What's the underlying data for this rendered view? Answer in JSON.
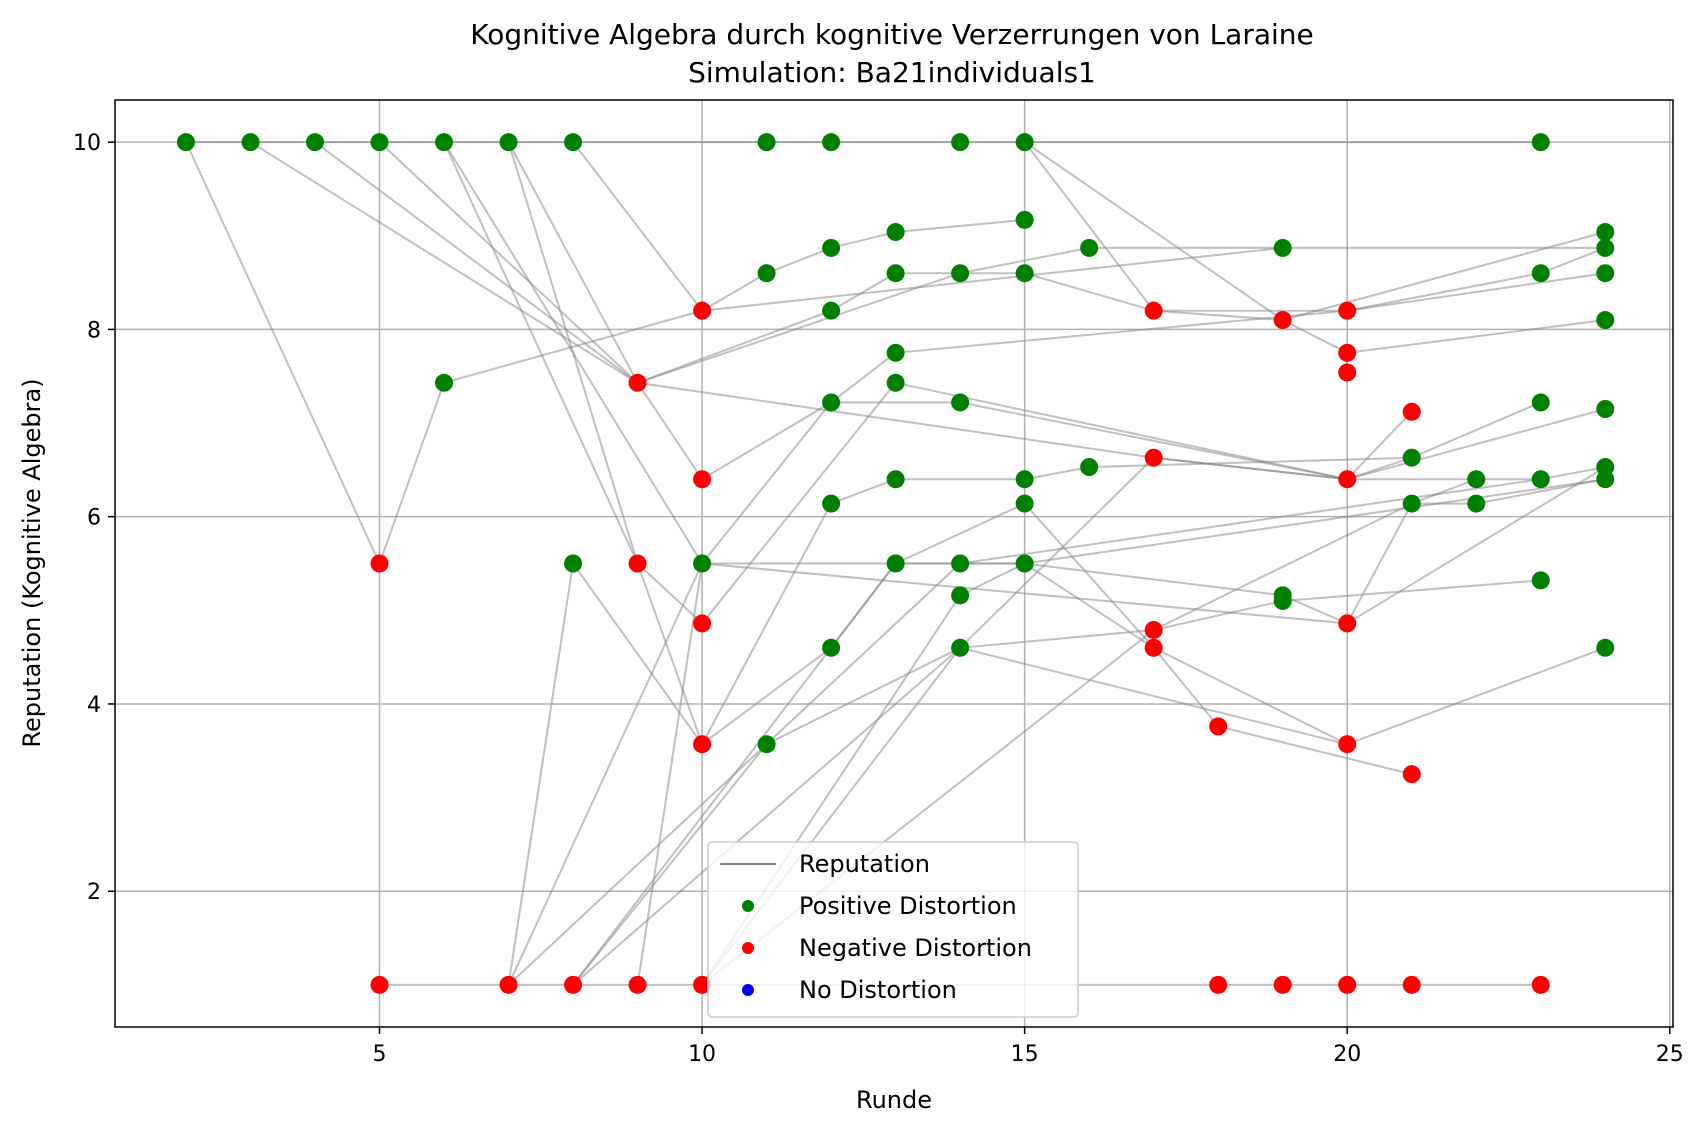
{
  "chart_data": {
    "type": "scatter",
    "title": "Kognitive Algebra durch kognitive Verzerrungen von Laraine",
    "subtitle": "Simulation: Ba21individuals1",
    "xlabel": "Runde",
    "ylabel": "Reputation (Kognitive Algebra)",
    "xlim": [
      0.9,
      25.05
    ],
    "ylim": [
      0.55,
      10.45
    ],
    "xticks": [
      5,
      10,
      15,
      20,
      25
    ],
    "yticks": [
      2,
      4,
      6,
      8,
      10
    ],
    "grid": true,
    "legend_position": "bottom-center",
    "legend": [
      {
        "label": "Reputation",
        "kind": "line",
        "color": "#808080"
      },
      {
        "label": "Positive Distortion",
        "kind": "point",
        "color": "#008000"
      },
      {
        "label": "Negative Distortion",
        "kind": "point",
        "color": "#ff0000"
      },
      {
        "label": "No Distortion",
        "kind": "point",
        "color": "#0000ff"
      }
    ],
    "colors": {
      "positive": "#008000",
      "negative": "#ff0000",
      "none": "#0000ff",
      "line": "#808080"
    },
    "reputation_lines": [
      [
        [
          2,
          10
        ],
        [
          23,
          10
        ]
      ],
      [
        [
          5,
          1
        ],
        [
          23,
          1
        ]
      ],
      [
        [
          2,
          10
        ],
        [
          5,
          5.5
        ],
        [
          6,
          7.43
        ],
        [
          10,
          8.2
        ],
        [
          11,
          8.6
        ],
        [
          12,
          8.87
        ],
        [
          13,
          9.04
        ],
        [
          15,
          9.17
        ]
      ],
      [
        [
          4,
          10
        ],
        [
          9,
          7.43
        ],
        [
          12,
          8.2
        ],
        [
          13,
          8.6
        ],
        [
          14,
          8.6
        ],
        [
          15,
          8.6
        ],
        [
          17,
          8.2
        ],
        [
          19,
          8.1
        ],
        [
          24,
          9.04
        ]
      ],
      [
        [
          3,
          10
        ],
        [
          9,
          7.43
        ],
        [
          14,
          8.6
        ],
        [
          16,
          8.87
        ],
        [
          19,
          8.87
        ],
        [
          24,
          8.87
        ]
      ],
      [
        [
          5,
          10
        ],
        [
          9,
          7.43
        ],
        [
          17,
          6.63
        ],
        [
          20,
          6.4
        ],
        [
          21,
          6.63
        ],
        [
          23,
          7.22
        ]
      ],
      [
        [
          6,
          10
        ],
        [
          9,
          5.5
        ],
        [
          10,
          3.57
        ],
        [
          12,
          4.6
        ],
        [
          13,
          5.5
        ],
        [
          14,
          5.5
        ],
        [
          15,
          5.5
        ],
        [
          20,
          6.0
        ],
        [
          24,
          6.4
        ]
      ],
      [
        [
          6,
          10
        ],
        [
          10,
          5.5
        ],
        [
          20,
          4.86
        ],
        [
          21,
          6.14
        ],
        [
          22,
          6.4
        ]
      ],
      [
        [
          7,
          10
        ],
        [
          9,
          7.43
        ],
        [
          10,
          6.4
        ],
        [
          12,
          7.22
        ],
        [
          13,
          7.75
        ],
        [
          20,
          8.2
        ],
        [
          23,
          8.6
        ],
        [
          24,
          8.87
        ]
      ],
      [
        [
          7,
          10
        ],
        [
          9,
          5.5
        ],
        [
          10,
          4.86
        ],
        [
          13,
          7.43
        ],
        [
          20,
          6.4
        ],
        [
          21,
          7.12
        ]
      ],
      [
        [
          8,
          10
        ],
        [
          10,
          8.2
        ],
        [
          19,
          8.87
        ]
      ],
      [
        [
          15,
          10
        ],
        [
          17,
          8.2
        ],
        [
          20,
          8.2
        ],
        [
          24,
          8.6
        ]
      ],
      [
        [
          15,
          10
        ],
        [
          19,
          8.1
        ],
        [
          20,
          7.75
        ],
        [
          24,
          8.1
        ]
      ],
      [
        [
          7,
          1
        ],
        [
          8,
          5.5
        ],
        [
          10,
          3.57
        ],
        [
          12,
          6.14
        ],
        [
          13,
          6.4
        ],
        [
          15,
          6.4
        ],
        [
          16,
          6.53
        ],
        [
          21,
          6.63
        ]
      ],
      [
        [
          7,
          1
        ],
        [
          10,
          5.5
        ],
        [
          12,
          7.22
        ],
        [
          14,
          7.22
        ],
        [
          20,
          6.4
        ],
        [
          24,
          7.15
        ]
      ],
      [
        [
          8,
          1
        ],
        [
          11,
          3.57
        ],
        [
          14,
          4.6
        ],
        [
          17,
          4.79
        ],
        [
          19,
          5.1
        ],
        [
          23,
          5.32
        ]
      ],
      [
        [
          8,
          1
        ],
        [
          13,
          5.5
        ],
        [
          15,
          6.14
        ],
        [
          17,
          4.6
        ],
        [
          20,
          3.57
        ],
        [
          24,
          4.6
        ]
      ],
      [
        [
          9,
          1
        ],
        [
          10,
          5.5
        ],
        [
          15,
          5.5
        ],
        [
          17,
          4.6
        ],
        [
          18,
          3.76
        ],
        [
          21,
          3.25
        ]
      ],
      [
        [
          10,
          1
        ],
        [
          14,
          5.16
        ],
        [
          15,
          5.5
        ],
        [
          19,
          5.16
        ],
        [
          20,
          4.86
        ],
        [
          24,
          6.53
        ]
      ],
      [
        [
          7,
          1
        ],
        [
          14,
          5.5
        ],
        [
          23,
          6.4
        ],
        [
          24,
          6.53
        ]
      ],
      [
        [
          8,
          1
        ],
        [
          14,
          4.6
        ],
        [
          17,
          6.63
        ],
        [
          20,
          6.4
        ],
        [
          23,
          6.4
        ]
      ],
      [
        [
          10,
          1
        ],
        [
          14,
          4.6
        ],
        [
          20,
          3.57
        ]
      ],
      [
        [
          10,
          1
        ],
        [
          17,
          4.79
        ],
        [
          21,
          6.14
        ],
        [
          22,
          6.14
        ],
        [
          24,
          6.4
        ]
      ]
    ],
    "points": [
      {
        "x": 2,
        "y": 10,
        "d": "positive"
      },
      {
        "x": 3,
        "y": 10,
        "d": "positive"
      },
      {
        "x": 4,
        "y": 10,
        "d": "positive"
      },
      {
        "x": 5,
        "y": 10,
        "d": "positive"
      },
      {
        "x": 6,
        "y": 10,
        "d": "positive"
      },
      {
        "x": 7,
        "y": 10,
        "d": "positive"
      },
      {
        "x": 8,
        "y": 10,
        "d": "positive"
      },
      {
        "x": 11,
        "y": 10,
        "d": "positive"
      },
      {
        "x": 12,
        "y": 10,
        "d": "positive"
      },
      {
        "x": 14,
        "y": 10,
        "d": "positive"
      },
      {
        "x": 15,
        "y": 10,
        "d": "positive"
      },
      {
        "x": 23,
        "y": 10,
        "d": "positive"
      },
      {
        "x": 15,
        "y": 9.17,
        "d": "positive"
      },
      {
        "x": 13,
        "y": 9.04,
        "d": "positive"
      },
      {
        "x": 24,
        "y": 9.04,
        "d": "positive"
      },
      {
        "x": 12,
        "y": 8.87,
        "d": "positive"
      },
      {
        "x": 16,
        "y": 8.87,
        "d": "positive"
      },
      {
        "x": 19,
        "y": 8.87,
        "d": "positive"
      },
      {
        "x": 24,
        "y": 8.87,
        "d": "positive"
      },
      {
        "x": 11,
        "y": 8.6,
        "d": "positive"
      },
      {
        "x": 13,
        "y": 8.6,
        "d": "positive"
      },
      {
        "x": 14,
        "y": 8.6,
        "d": "positive"
      },
      {
        "x": 15,
        "y": 8.6,
        "d": "positive"
      },
      {
        "x": 23,
        "y": 8.6,
        "d": "positive"
      },
      {
        "x": 24,
        "y": 8.6,
        "d": "positive"
      },
      {
        "x": 12,
        "y": 8.2,
        "d": "positive"
      },
      {
        "x": 24,
        "y": 8.1,
        "d": "positive"
      },
      {
        "x": 13,
        "y": 7.75,
        "d": "positive"
      },
      {
        "x": 6,
        "y": 7.43,
        "d": "positive"
      },
      {
        "x": 13,
        "y": 7.43,
        "d": "positive"
      },
      {
        "x": 12,
        "y": 7.22,
        "d": "positive"
      },
      {
        "x": 14,
        "y": 7.22,
        "d": "positive"
      },
      {
        "x": 23,
        "y": 7.22,
        "d": "positive"
      },
      {
        "x": 24,
        "y": 7.15,
        "d": "positive"
      },
      {
        "x": 21,
        "y": 6.63,
        "d": "positive"
      },
      {
        "x": 16,
        "y": 6.53,
        "d": "positive"
      },
      {
        "x": 24,
        "y": 6.53,
        "d": "positive"
      },
      {
        "x": 13,
        "y": 6.4,
        "d": "positive"
      },
      {
        "x": 15,
        "y": 6.4,
        "d": "positive"
      },
      {
        "x": 22,
        "y": 6.4,
        "d": "positive"
      },
      {
        "x": 23,
        "y": 6.4,
        "d": "positive"
      },
      {
        "x": 24,
        "y": 6.4,
        "d": "positive"
      },
      {
        "x": 12,
        "y": 6.14,
        "d": "positive"
      },
      {
        "x": 15,
        "y": 6.14,
        "d": "positive"
      },
      {
        "x": 21,
        "y": 6.14,
        "d": "positive"
      },
      {
        "x": 22,
        "y": 6.14,
        "d": "positive"
      },
      {
        "x": 8,
        "y": 5.5,
        "d": "positive"
      },
      {
        "x": 10,
        "y": 5.5,
        "d": "positive"
      },
      {
        "x": 13,
        "y": 5.5,
        "d": "positive"
      },
      {
        "x": 14,
        "y": 5.5,
        "d": "positive"
      },
      {
        "x": 15,
        "y": 5.5,
        "d": "positive"
      },
      {
        "x": 23,
        "y": 5.32,
        "d": "positive"
      },
      {
        "x": 14,
        "y": 5.16,
        "d": "positive"
      },
      {
        "x": 19,
        "y": 5.16,
        "d": "positive"
      },
      {
        "x": 19,
        "y": 5.1,
        "d": "positive"
      },
      {
        "x": 12,
        "y": 4.6,
        "d": "positive"
      },
      {
        "x": 14,
        "y": 4.6,
        "d": "positive"
      },
      {
        "x": 24,
        "y": 4.6,
        "d": "positive"
      },
      {
        "x": 11,
        "y": 3.57,
        "d": "positive"
      },
      {
        "x": 10,
        "y": 8.2,
        "d": "negative"
      },
      {
        "x": 17,
        "y": 8.2,
        "d": "negative"
      },
      {
        "x": 20,
        "y": 8.2,
        "d": "negative"
      },
      {
        "x": 19,
        "y": 8.1,
        "d": "negative"
      },
      {
        "x": 20,
        "y": 7.75,
        "d": "negative"
      },
      {
        "x": 20,
        "y": 7.54,
        "d": "negative"
      },
      {
        "x": 9,
        "y": 7.43,
        "d": "negative"
      },
      {
        "x": 21,
        "y": 7.12,
        "d": "negative"
      },
      {
        "x": 17,
        "y": 6.63,
        "d": "negative"
      },
      {
        "x": 10,
        "y": 6.4,
        "d": "negative"
      },
      {
        "x": 20,
        "y": 6.4,
        "d": "negative"
      },
      {
        "x": 5,
        "y": 5.5,
        "d": "negative"
      },
      {
        "x": 9,
        "y": 5.5,
        "d": "negative"
      },
      {
        "x": 10,
        "y": 4.86,
        "d": "negative"
      },
      {
        "x": 20,
        "y": 4.86,
        "d": "negative"
      },
      {
        "x": 17,
        "y": 4.79,
        "d": "negative"
      },
      {
        "x": 17,
        "y": 4.6,
        "d": "negative"
      },
      {
        "x": 18,
        "y": 3.76,
        "d": "negative"
      },
      {
        "x": 10,
        "y": 3.57,
        "d": "negative"
      },
      {
        "x": 20,
        "y": 3.57,
        "d": "negative"
      },
      {
        "x": 21,
        "y": 3.25,
        "d": "negative"
      },
      {
        "x": 5,
        "y": 1,
        "d": "negative"
      },
      {
        "x": 7,
        "y": 1,
        "d": "negative"
      },
      {
        "x": 8,
        "y": 1,
        "d": "negative"
      },
      {
        "x": 9,
        "y": 1,
        "d": "negative"
      },
      {
        "x": 10,
        "y": 1,
        "d": "negative"
      },
      {
        "x": 18,
        "y": 1,
        "d": "negative"
      },
      {
        "x": 19,
        "y": 1,
        "d": "negative"
      },
      {
        "x": 20,
        "y": 1,
        "d": "negative"
      },
      {
        "x": 21,
        "y": 1,
        "d": "negative"
      },
      {
        "x": 23,
        "y": 1,
        "d": "negative"
      }
    ]
  }
}
